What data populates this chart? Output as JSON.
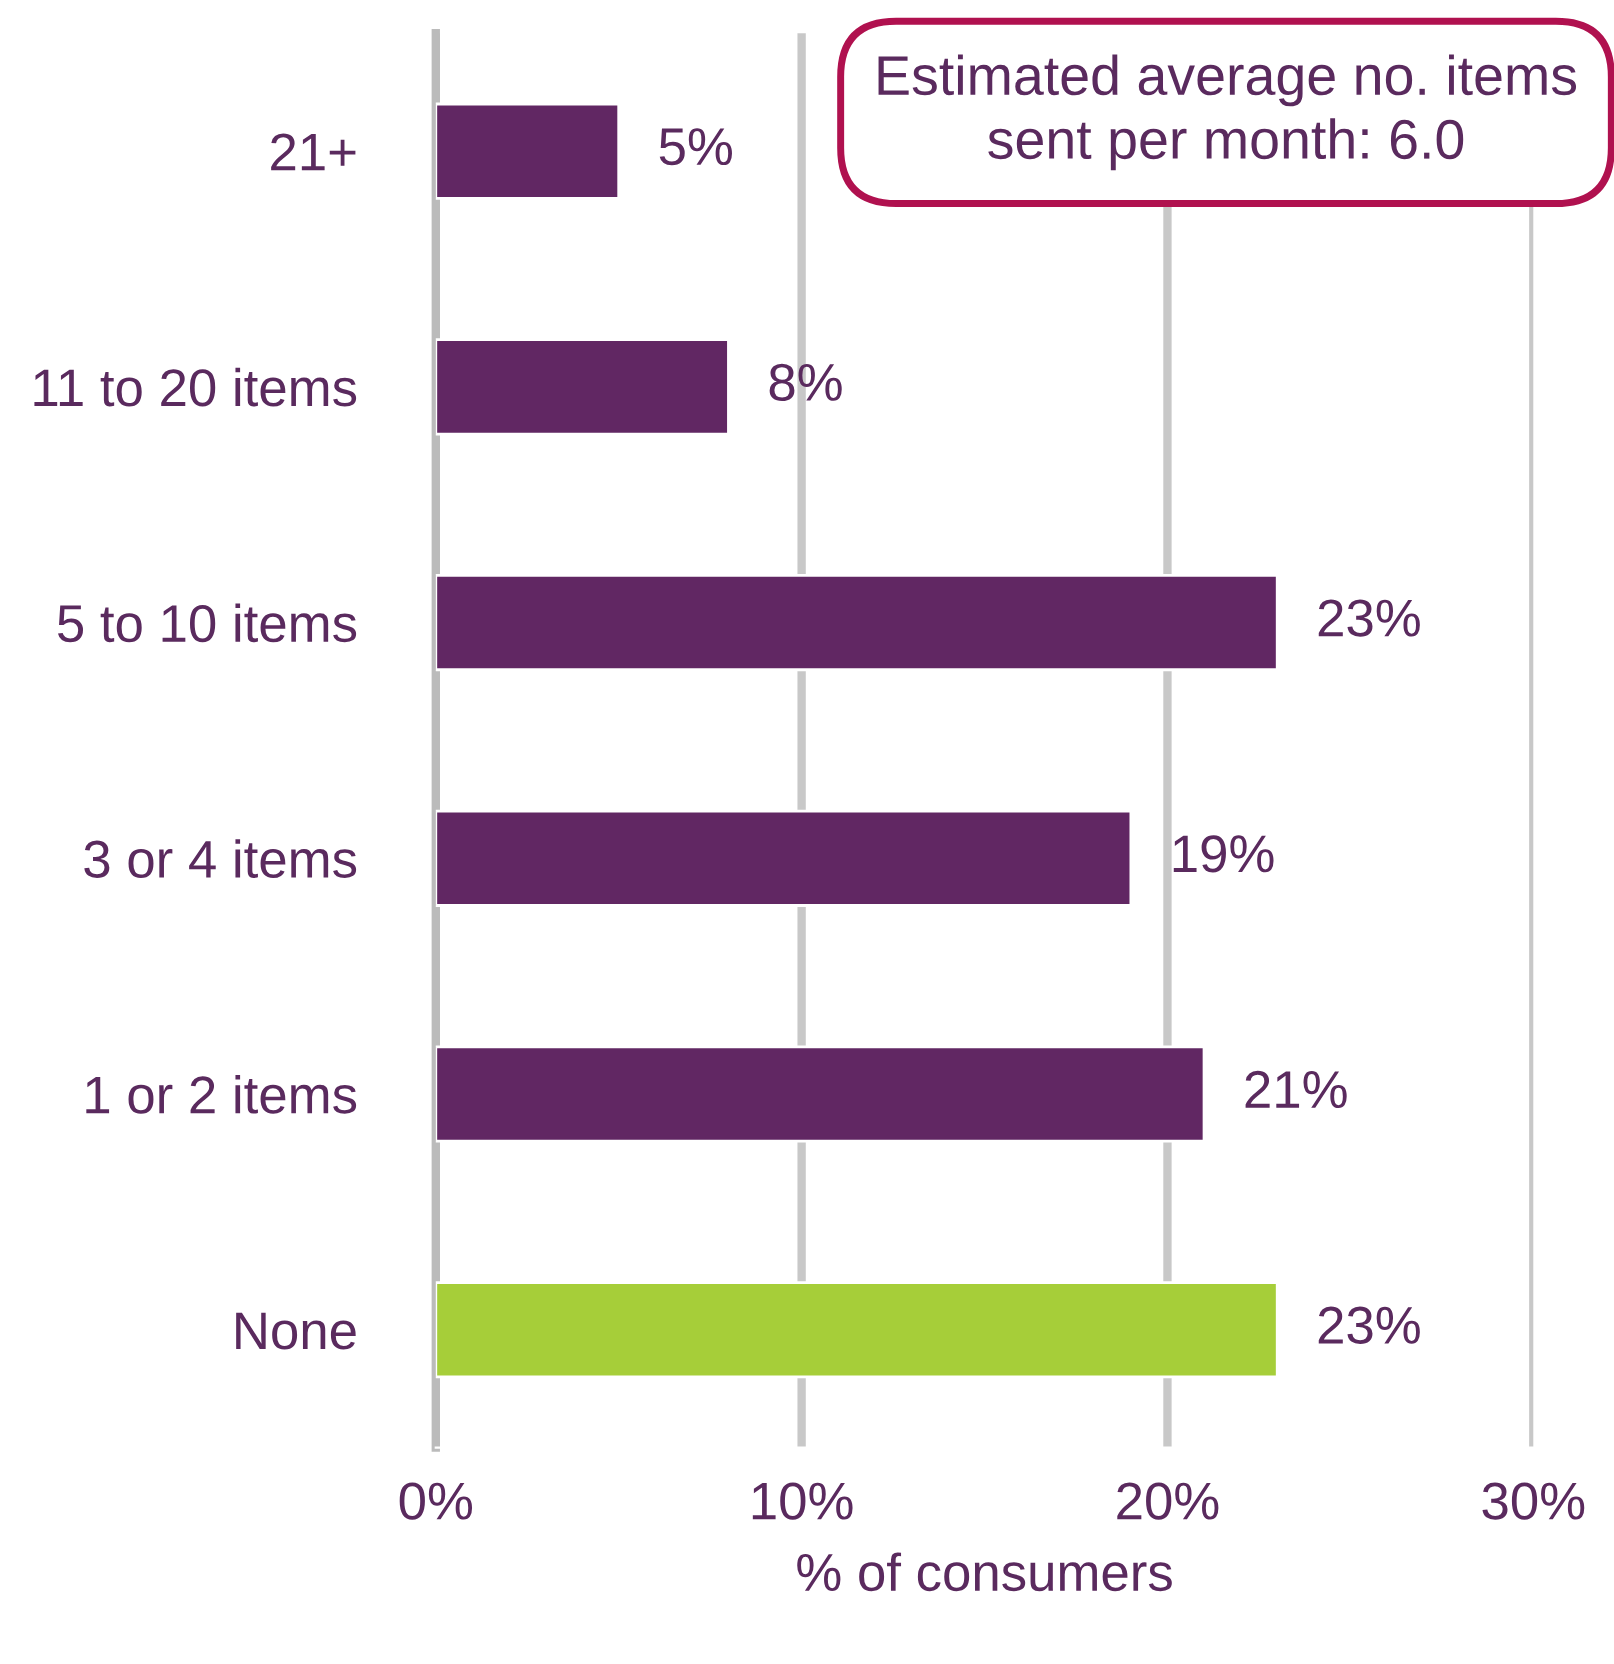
{
  "chart_data": {
    "type": "bar",
    "orientation": "horizontal",
    "categories": [
      "21+",
      "11 to 20 items",
      "5 to 10 items",
      "3 or 4 items",
      "1 or 2 items",
      "None"
    ],
    "values": [
      5,
      8,
      23,
      19,
      21,
      23
    ],
    "colors": [
      "#612763",
      "#612763",
      "#612763",
      "#612763",
      "#612763",
      "#a6ce39"
    ],
    "value_labels": [
      "5%",
      "8%",
      "23%",
      "19%",
      "21%",
      "23%"
    ],
    "xlim": [
      0,
      30
    ],
    "xticks": [
      {
        "value": 0,
        "label": "0%"
      },
      {
        "value": 10,
        "label": "10%"
      },
      {
        "value": 20,
        "label": "20%"
      },
      {
        "value": 30,
        "label": "30%"
      }
    ],
    "xlabel": "% of consumers",
    "grid": "x",
    "annotations": [
      "Estimated average no. items sent per month: 6.0"
    ]
  }
}
